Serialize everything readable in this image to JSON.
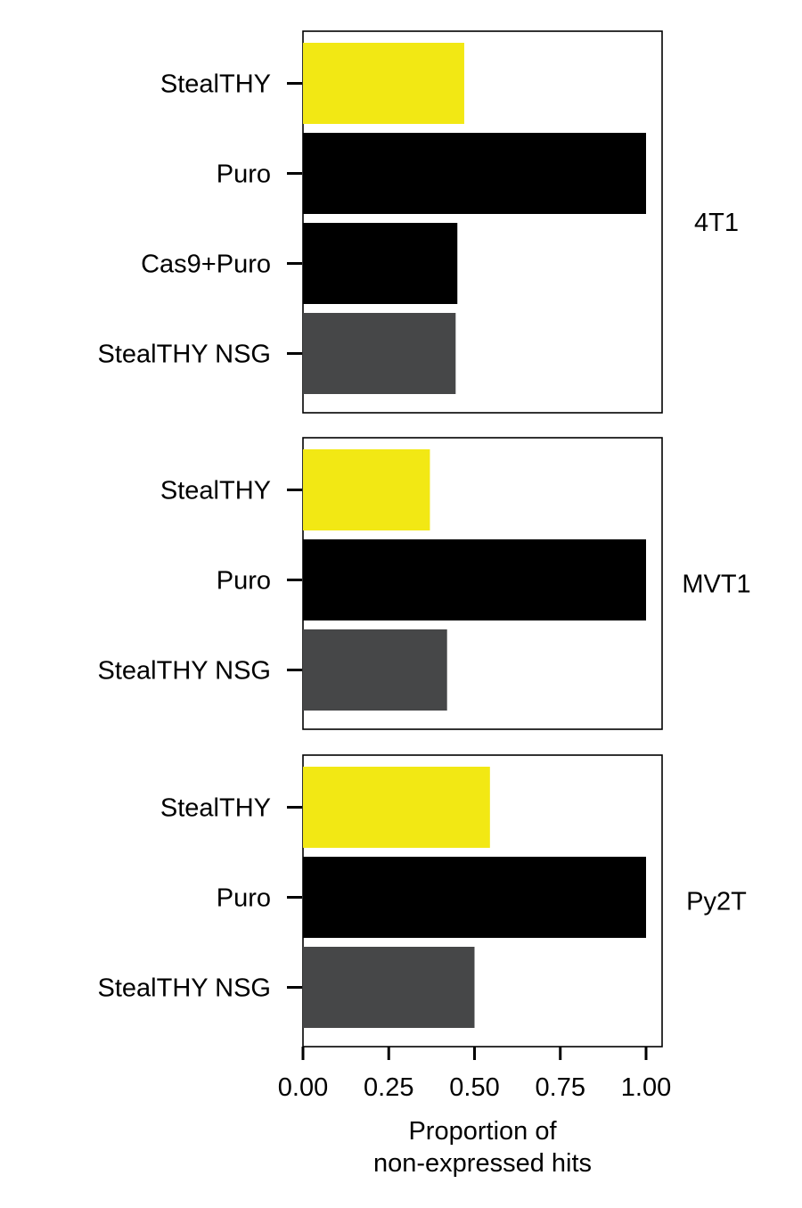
{
  "chart_data": {
    "type": "bar",
    "orientation": "horizontal",
    "xlabel": "Proportion of\nnon-expressed hits",
    "xlim": [
      0,
      1.05
    ],
    "xticks": [
      0.0,
      0.25,
      0.5,
      0.75,
      1.0
    ],
    "xtick_labels": [
      "0.00",
      "0.25",
      "0.50",
      "0.75",
      "1.00"
    ],
    "grid": false,
    "legend": "none",
    "colors": {
      "StealTHY": "#f2e814",
      "Puro": "#000000",
      "Cas9+Puro": "#000000",
      "StealTHY NSG": "#464748"
    },
    "panels": [
      {
        "facet_label": "4T1",
        "categories": [
          "StealTHY",
          "Puro",
          "Cas9+Puro",
          "StealTHY NSG"
        ],
        "values": [
          0.47,
          1.0,
          0.45,
          0.445
        ]
      },
      {
        "facet_label": "MVT1",
        "categories": [
          "StealTHY",
          "Puro",
          "StealTHY NSG"
        ],
        "values": [
          0.37,
          1.0,
          0.42
        ]
      },
      {
        "facet_label": "Py2T",
        "categories": [
          "StealTHY",
          "Puro",
          "StealTHY NSG"
        ],
        "values": [
          0.545,
          1.0,
          0.5
        ]
      }
    ]
  }
}
